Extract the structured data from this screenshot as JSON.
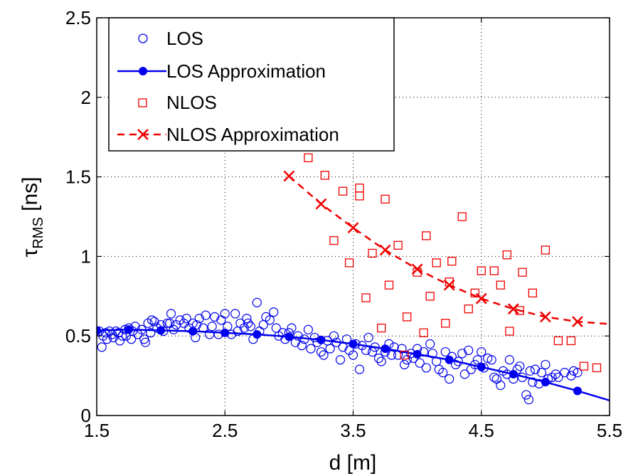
{
  "chart_data": {
    "type": "scatter",
    "xlabel": "d [m]",
    "ylabel": {
      "base": "τ",
      "sub": "RMS",
      "unit": " [ns]"
    },
    "xlim": [
      1.5,
      5.5
    ],
    "ylim": [
      0,
      2.5
    ],
    "xticks": [
      "1.5",
      "2.5",
      "3.5",
      "4.5",
      "5.5"
    ],
    "xtick_values": [
      1.5,
      2.5,
      3.5,
      4.5,
      5.5
    ],
    "yticks": [
      "0",
      "0.5",
      "1",
      "1.5",
      "2",
      "2.5"
    ],
    "ytick_values": [
      0,
      0.5,
      1,
      1.5,
      2,
      2.5
    ],
    "grid": true,
    "legend_placement": "top-left",
    "colors": {
      "los": "#0000ee",
      "nlos": "#ee0000"
    },
    "series": [
      {
        "name": "LOS",
        "marker": "open-circle",
        "color": "#0000ee",
        "points": [
          [
            1.52,
            0.53
          ],
          [
            1.54,
            0.43
          ],
          [
            1.55,
            0.5
          ],
          [
            1.57,
            0.52
          ],
          [
            1.58,
            0.48
          ],
          [
            1.6,
            0.53
          ],
          [
            1.62,
            0.51
          ],
          [
            1.63,
            0.49
          ],
          [
            1.65,
            0.53
          ],
          [
            1.67,
            0.52
          ],
          [
            1.68,
            0.47
          ],
          [
            1.7,
            0.5
          ],
          [
            1.72,
            0.54
          ],
          [
            1.73,
            0.5
          ],
          [
            1.75,
            0.55
          ],
          [
            1.77,
            0.48
          ],
          [
            1.78,
            0.53
          ],
          [
            1.8,
            0.56
          ],
          [
            1.82,
            0.51
          ],
          [
            1.85,
            0.54
          ],
          [
            1.87,
            0.48
          ],
          [
            1.88,
            0.46
          ],
          [
            1.9,
            0.58
          ],
          [
            1.92,
            0.52
          ],
          [
            1.93,
            0.6
          ],
          [
            1.95,
            0.59
          ],
          [
            1.97,
            0.55
          ],
          [
            2.0,
            0.57
          ],
          [
            2.02,
            0.53
          ],
          [
            2.05,
            0.58
          ],
          [
            2.07,
            0.58
          ],
          [
            2.08,
            0.64
          ],
          [
            2.1,
            0.54
          ],
          [
            2.12,
            0.57
          ],
          [
            2.15,
            0.6
          ],
          [
            2.18,
            0.58
          ],
          [
            2.2,
            0.61
          ],
          [
            2.22,
            0.55
          ],
          [
            2.25,
            0.58
          ],
          [
            2.27,
            0.49
          ],
          [
            2.28,
            0.57
          ],
          [
            2.3,
            0.61
          ],
          [
            2.33,
            0.55
          ],
          [
            2.35,
            0.63
          ],
          [
            2.38,
            0.51
          ],
          [
            2.4,
            0.56
          ],
          [
            2.42,
            0.62
          ],
          [
            2.45,
            0.51
          ],
          [
            2.47,
            0.6
          ],
          [
            2.5,
            0.64
          ],
          [
            2.52,
            0.56
          ],
          [
            2.55,
            0.51
          ],
          [
            2.58,
            0.64
          ],
          [
            2.6,
            0.53
          ],
          [
            2.62,
            0.58
          ],
          [
            2.65,
            0.55
          ],
          [
            2.67,
            0.61
          ],
          [
            2.68,
            0.58
          ],
          [
            2.7,
            0.56
          ],
          [
            2.72,
            0.48
          ],
          [
            2.75,
            0.71
          ],
          [
            2.77,
            0.53
          ],
          [
            2.8,
            0.57
          ],
          [
            2.82,
            0.62
          ],
          [
            2.85,
            0.6
          ],
          [
            2.88,
            0.65
          ],
          [
            2.9,
            0.55
          ],
          [
            2.92,
            0.5
          ],
          [
            2.95,
            0.52
          ],
          [
            2.97,
            0.48
          ],
          [
            3.0,
            0.52
          ],
          [
            3.02,
            0.55
          ],
          [
            3.05,
            0.46
          ],
          [
            3.07,
            0.5
          ],
          [
            3.1,
            0.44
          ],
          [
            3.12,
            0.48
          ],
          [
            3.15,
            0.54
          ],
          [
            3.17,
            0.42
          ],
          [
            3.2,
            0.49
          ],
          [
            3.22,
            0.46
          ],
          [
            3.25,
            0.4
          ],
          [
            3.27,
            0.38
          ],
          [
            3.3,
            0.47
          ],
          [
            3.32,
            0.42
          ],
          [
            3.35,
            0.5
          ],
          [
            3.37,
            0.46
          ],
          [
            3.4,
            0.35
          ],
          [
            3.42,
            0.43
          ],
          [
            3.45,
            0.48
          ],
          [
            3.47,
            0.41
          ],
          [
            3.5,
            0.38
          ],
          [
            3.52,
            0.45
          ],
          [
            3.55,
            0.29
          ],
          [
            3.57,
            0.44
          ],
          [
            3.6,
            0.41
          ],
          [
            3.62,
            0.49
          ],
          [
            3.65,
            0.4
          ],
          [
            3.67,
            0.43
          ],
          [
            3.7,
            0.36
          ],
          [
            3.72,
            0.34
          ],
          [
            3.75,
            0.4
          ],
          [
            3.78,
            0.45
          ],
          [
            3.8,
            0.38
          ],
          [
            3.82,
            0.43
          ],
          [
            3.85,
            0.38
          ],
          [
            3.88,
            0.42
          ],
          [
            3.9,
            0.32
          ],
          [
            3.92,
            0.35
          ],
          [
            3.95,
            0.39
          ],
          [
            3.97,
            0.36
          ],
          [
            4.0,
            0.42
          ],
          [
            4.02,
            0.33
          ],
          [
            4.05,
            0.4
          ],
          [
            4.07,
            0.3
          ],
          [
            4.1,
            0.45
          ],
          [
            4.12,
            0.39
          ],
          [
            4.15,
            0.34
          ],
          [
            4.17,
            0.29
          ],
          [
            4.2,
            0.27
          ],
          [
            4.22,
            0.4
          ],
          [
            4.25,
            0.23
          ],
          [
            4.27,
            0.37
          ],
          [
            4.3,
            0.32
          ],
          [
            4.32,
            0.34
          ],
          [
            4.35,
            0.39
          ],
          [
            4.37,
            0.26
          ],
          [
            4.4,
            0.41
          ],
          [
            4.42,
            0.29
          ],
          [
            4.45,
            0.32
          ],
          [
            4.47,
            0.35
          ],
          [
            4.5,
            0.4
          ],
          [
            4.52,
            0.3
          ],
          [
            4.55,
            0.36
          ],
          [
            4.58,
            0.35
          ],
          [
            4.6,
            0.24
          ],
          [
            4.62,
            0.23
          ],
          [
            4.65,
            0.19
          ],
          [
            4.67,
            0.28
          ],
          [
            4.7,
            0.26
          ],
          [
            4.72,
            0.35
          ],
          [
            4.75,
            0.23
          ],
          [
            4.78,
            0.29
          ],
          [
            4.8,
            0.31
          ],
          [
            4.82,
            0.24
          ],
          [
            4.85,
            0.13
          ],
          [
            4.87,
            0.1
          ],
          [
            4.88,
            0.28
          ],
          [
            4.9,
            0.21
          ],
          [
            4.92,
            0.29
          ],
          [
            4.95,
            0.2
          ],
          [
            4.97,
            0.27
          ],
          [
            5.0,
            0.32
          ],
          [
            5.02,
            0.23
          ],
          [
            5.05,
            0.24
          ],
          [
            5.08,
            0.26
          ],
          [
            5.1,
            0.24
          ],
          [
            5.15,
            0.27
          ],
          [
            5.2,
            0.25
          ],
          [
            5.22,
            0.28
          ],
          [
            5.25,
            0.27
          ]
        ]
      },
      {
        "name": "LOS Approximation",
        "marker": "filled-circle-line",
        "color": "#0000ee",
        "line": [
          [
            1.5,
            0.535
          ],
          [
            1.75,
            0.54
          ],
          [
            2.0,
            0.535
          ],
          [
            2.25,
            0.53
          ],
          [
            2.5,
            0.52
          ],
          [
            2.75,
            0.51
          ],
          [
            3.0,
            0.495
          ],
          [
            3.25,
            0.475
          ],
          [
            3.5,
            0.45
          ],
          [
            3.75,
            0.42
          ],
          [
            4.0,
            0.385
          ],
          [
            4.25,
            0.35
          ],
          [
            4.5,
            0.305
          ],
          [
            4.75,
            0.26
          ],
          [
            5.0,
            0.21
          ],
          [
            5.25,
            0.155
          ],
          [
            5.5,
            0.095
          ]
        ],
        "markers": [
          [
            1.5,
            0.535
          ],
          [
            1.75,
            0.54
          ],
          [
            2.0,
            0.535
          ],
          [
            2.25,
            0.53
          ],
          [
            2.5,
            0.52
          ],
          [
            2.75,
            0.51
          ],
          [
            3.0,
            0.495
          ],
          [
            3.25,
            0.475
          ],
          [
            3.5,
            0.45
          ],
          [
            3.75,
            0.42
          ],
          [
            4.0,
            0.385
          ],
          [
            4.25,
            0.35
          ],
          [
            4.5,
            0.305
          ],
          [
            4.75,
            0.26
          ],
          [
            5.0,
            0.21
          ],
          [
            5.25,
            0.155
          ]
        ]
      },
      {
        "name": "NLOS",
        "marker": "open-square",
        "color": "#ee0000",
        "points": [
          [
            3.15,
            1.62
          ],
          [
            3.28,
            1.51
          ],
          [
            3.35,
            1.1
          ],
          [
            3.42,
            1.41
          ],
          [
            3.47,
            0.96
          ],
          [
            3.55,
            1.43
          ],
          [
            3.55,
            1.38
          ],
          [
            3.6,
            0.74
          ],
          [
            3.65,
            1.02
          ],
          [
            3.72,
            0.55
          ],
          [
            3.75,
            1.36
          ],
          [
            3.78,
            0.82
          ],
          [
            3.85,
            1.07
          ],
          [
            3.9,
            0.38
          ],
          [
            3.92,
            0.62
          ],
          [
            4.0,
            0.9
          ],
          [
            4.05,
            0.52
          ],
          [
            4.07,
            1.13
          ],
          [
            4.1,
            0.75
          ],
          [
            4.15,
            0.96
          ],
          [
            4.22,
            0.58
          ],
          [
            4.25,
            0.84
          ],
          [
            4.27,
            0.97
          ],
          [
            4.35,
            1.25
          ],
          [
            4.4,
            0.67
          ],
          [
            4.45,
            0.77
          ],
          [
            4.5,
            0.91
          ],
          [
            4.6,
            0.91
          ],
          [
            4.65,
            0.82
          ],
          [
            4.7,
            1.01
          ],
          [
            4.72,
            0.53
          ],
          [
            4.8,
            0.66
          ],
          [
            4.82,
            0.9
          ],
          [
            4.9,
            0.77
          ],
          [
            5.0,
            1.04
          ],
          [
            5.1,
            0.47
          ],
          [
            5.2,
            0.47
          ],
          [
            5.3,
            0.31
          ],
          [
            5.4,
            0.3
          ]
        ]
      },
      {
        "name": "NLOS Approximation",
        "marker": "x-dashed-line",
        "color": "#ee0000",
        "line": [
          [
            3.0,
            1.505
          ],
          [
            3.25,
            1.33
          ],
          [
            3.5,
            1.18
          ],
          [
            3.75,
            1.04
          ],
          [
            4.0,
            0.92
          ],
          [
            4.25,
            0.82
          ],
          [
            4.5,
            0.735
          ],
          [
            4.75,
            0.67
          ],
          [
            5.0,
            0.62
          ],
          [
            5.25,
            0.59
          ],
          [
            5.5,
            0.575
          ]
        ],
        "markers": [
          [
            3.0,
            1.505
          ],
          [
            3.25,
            1.33
          ],
          [
            3.5,
            1.18
          ],
          [
            3.75,
            1.04
          ],
          [
            4.0,
            0.92
          ],
          [
            4.25,
            0.82
          ],
          [
            4.5,
            0.735
          ],
          [
            4.75,
            0.67
          ],
          [
            5.0,
            0.62
          ],
          [
            5.25,
            0.59
          ]
        ]
      }
    ]
  }
}
